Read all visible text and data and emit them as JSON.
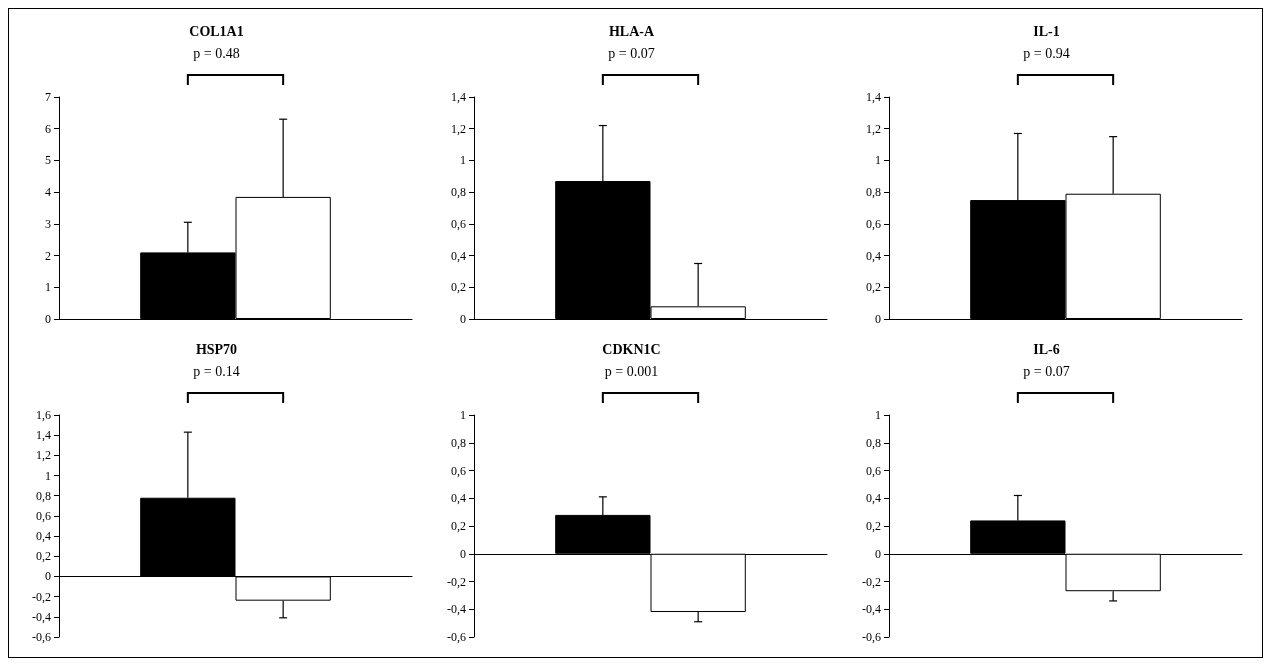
{
  "chart_data": [
    {
      "type": "bar",
      "title": "COL1A1",
      "annotations": [
        "p = 0.48"
      ],
      "categories": [
        null
      ],
      "series": [
        {
          "color": "#000000",
          "values": [
            2.1
          ],
          "errors": [
            [
              2.1,
              3.05
            ]
          ]
        },
        {
          "color": "#ffffff",
          "values": [
            3.85
          ],
          "errors": [
            [
              3.85,
              6.3
            ]
          ]
        }
      ],
      "ylim": [
        0,
        7
      ],
      "yticks": [
        0,
        1,
        2,
        3,
        4,
        5,
        6,
        7
      ]
    },
    {
      "type": "bar",
      "title": "HLA-A",
      "annotations": [
        "p = 0.07"
      ],
      "categories": [
        null
      ],
      "series": [
        {
          "color": "#000000",
          "values": [
            0.87
          ],
          "errors": [
            [
              0.87,
              1.22
            ]
          ]
        },
        {
          "color": "#ffffff",
          "values": [
            0.08
          ],
          "errors": [
            [
              0.08,
              0.35
            ]
          ]
        }
      ],
      "ylim": [
        0,
        1.4
      ],
      "yticks": [
        0,
        {
          "value": 0.2,
          "label": "0,2"
        },
        {
          "value": 0.4,
          "label": "0,4"
        },
        {
          "value": 0.6,
          "label": "0,6"
        },
        {
          "value": 0.8,
          "label": "0,8"
        },
        1,
        {
          "value": 1.2,
          "label": "1,2"
        },
        {
          "value": 1.4,
          "label": "1,4"
        }
      ]
    },
    {
      "type": "bar",
      "title": "IL-1",
      "annotations": [
        "p = 0.94"
      ],
      "categories": [
        null
      ],
      "series": [
        {
          "color": "#000000",
          "values": [
            0.75
          ],
          "errors": [
            [
              0.75,
              1.17
            ]
          ]
        },
        {
          "color": "#ffffff",
          "values": [
            0.79
          ],
          "errors": [
            [
              0.79,
              1.15
            ]
          ]
        }
      ],
      "ylim": [
        0,
        1.4
      ],
      "yticks": [
        0,
        {
          "value": 0.2,
          "label": "0,2"
        },
        {
          "value": 0.4,
          "label": "0,4"
        },
        {
          "value": 0.6,
          "label": "0,6"
        },
        {
          "value": 0.8,
          "label": "0,8"
        },
        1,
        {
          "value": 1.2,
          "label": "1,2"
        },
        {
          "value": 1.4,
          "label": "1,4"
        }
      ]
    },
    {
      "type": "bar",
      "title": "HSP70",
      "annotations": [
        "p = 0.14"
      ],
      "categories": [
        null
      ],
      "series": [
        {
          "color": "#000000",
          "values": [
            0.78
          ],
          "errors": [
            [
              0.78,
              1.43
            ]
          ]
        },
        {
          "color": "#ffffff",
          "values": [
            -0.24
          ],
          "errors": [
            [
              -0.41,
              -0.24
            ]
          ]
        }
      ],
      "ylim": [
        -0.6,
        1.6
      ],
      "yticks": [
        {
          "value": -0.6,
          "label": "-0,6"
        },
        {
          "value": -0.4,
          "label": "-0,4"
        },
        {
          "value": -0.2,
          "label": "-0,2"
        },
        0,
        {
          "value": 0.2,
          "label": "0,2"
        },
        {
          "value": 0.4,
          "label": "0,4"
        },
        {
          "value": 0.6,
          "label": "0,6"
        },
        {
          "value": 0.8,
          "label": "0,8"
        },
        1,
        {
          "value": 1.2,
          "label": "1,2"
        },
        {
          "value": 1.4,
          "label": "1,4"
        },
        {
          "value": 1.6,
          "label": "1,6"
        }
      ]
    },
    {
      "type": "bar",
      "title": "CDKN1C",
      "annotations": [
        "p = 0.001"
      ],
      "categories": [
        null
      ],
      "series": [
        {
          "color": "#000000",
          "values": [
            0.28
          ],
          "errors": [
            [
              0.28,
              0.41
            ]
          ]
        },
        {
          "color": "#ffffff",
          "values": [
            -0.42
          ],
          "errors": [
            [
              -0.49,
              -0.42
            ]
          ]
        }
      ],
      "ylim": [
        -0.6,
        1
      ],
      "yticks": [
        {
          "value": -0.6,
          "label": "-0,6"
        },
        {
          "value": -0.4,
          "label": "-0,4"
        },
        {
          "value": -0.2,
          "label": "-0,2"
        },
        0,
        {
          "value": 0.2,
          "label": "0,2"
        },
        {
          "value": 0.4,
          "label": "0,4"
        },
        {
          "value": 0.6,
          "label": "0,6"
        },
        {
          "value": 0.8,
          "label": "0,8"
        },
        1
      ]
    },
    {
      "type": "bar",
      "title": "IL-6",
      "annotations": [
        "p = 0.07"
      ],
      "categories": [
        null
      ],
      "series": [
        {
          "color": "#000000",
          "values": [
            0.24
          ],
          "errors": [
            [
              0.24,
              0.42
            ]
          ]
        },
        {
          "color": "#ffffff",
          "values": [
            -0.27
          ],
          "errors": [
            [
              -0.34,
              -0.27
            ]
          ]
        }
      ],
      "ylim": [
        -0.6,
        1
      ],
      "yticks": [
        {
          "value": -0.6,
          "label": "-0,6"
        },
        {
          "value": -0.4,
          "label": "-0,4"
        },
        {
          "value": -0.2,
          "label": "-0,2"
        },
        0,
        {
          "value": 0.2,
          "label": "0,2"
        },
        {
          "value": 0.4,
          "label": "0,4"
        },
        {
          "value": 0.6,
          "label": "0,6"
        },
        {
          "value": 0.8,
          "label": "0,8"
        },
        1
      ]
    }
  ]
}
